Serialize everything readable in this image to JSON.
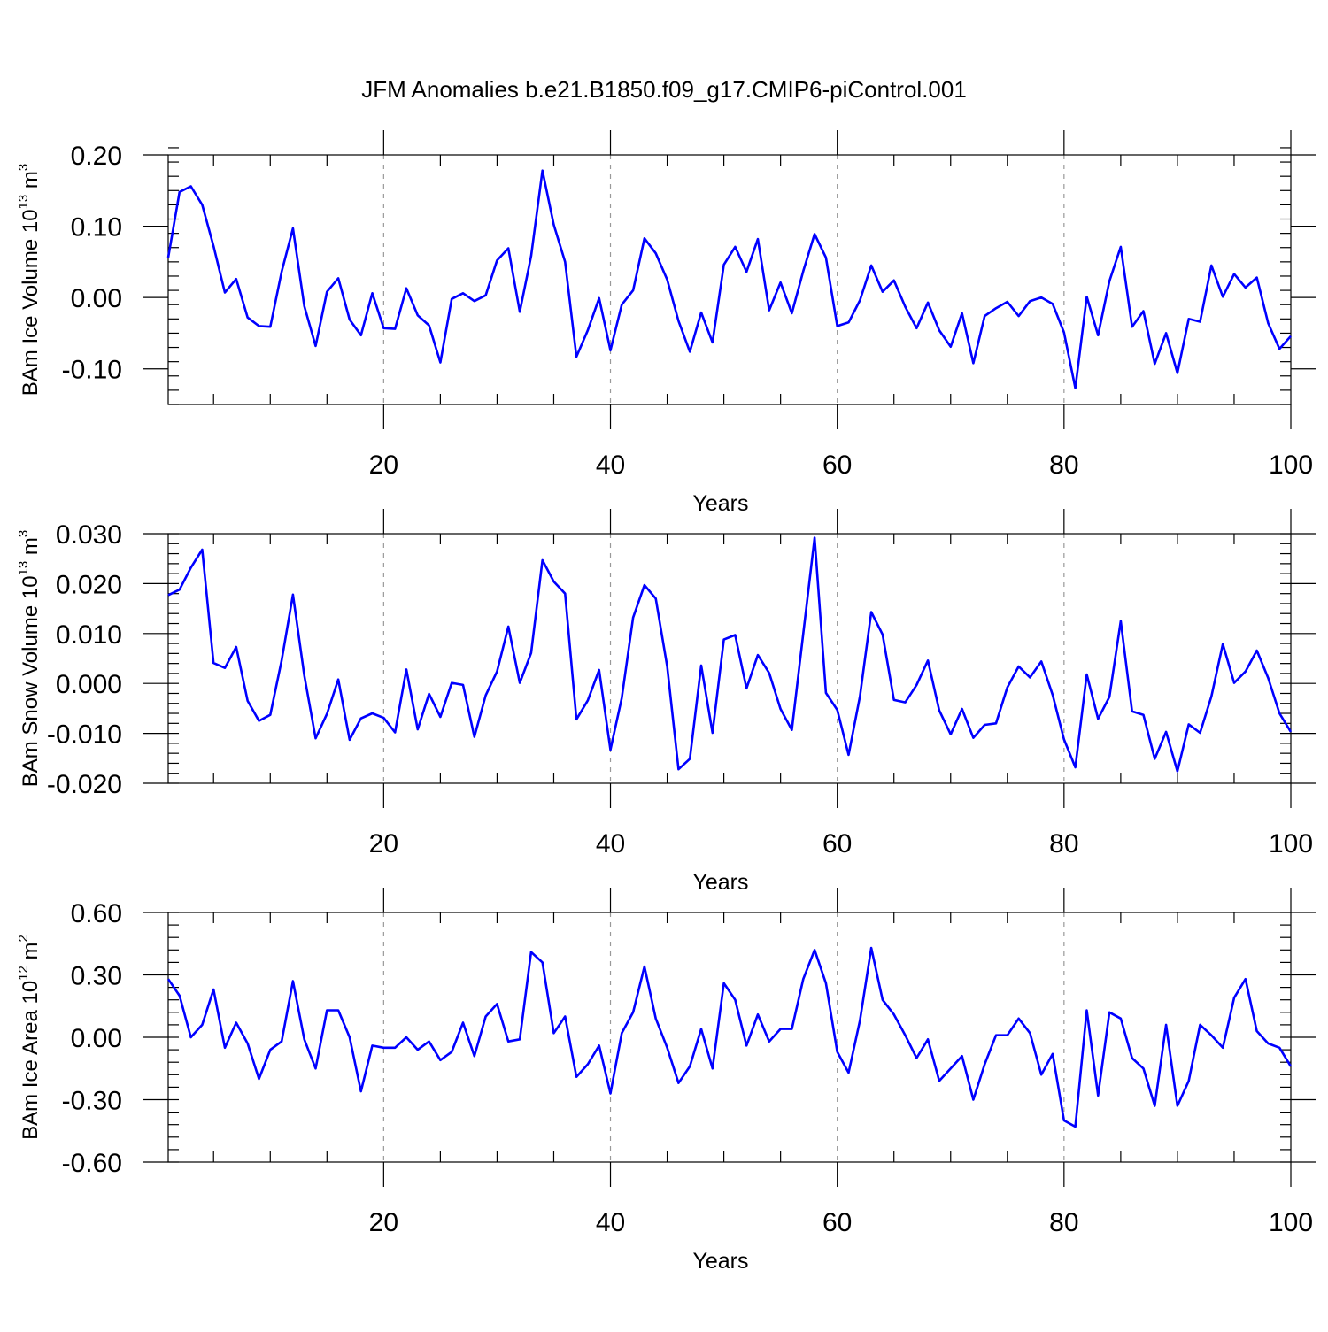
{
  "title": "JFM Anomalies b.e21.B1850.f09_g17.CMIP6-piControl.001",
  "chart_data": [
    {
      "type": "line",
      "ylabel": "BAm Ice Volume 10",
      "ylabel_exp": "13",
      "ylabel_unit": " m",
      "ylabel_unit_exp": "3",
      "xlabel": "Years",
      "xlim": [
        1,
        100
      ],
      "ylim": [
        -0.15,
        0.2
      ],
      "xticks": [
        20,
        40,
        60,
        80,
        100
      ],
      "xtick_labels": [
        "20",
        "40",
        "60",
        "80",
        "100"
      ],
      "yticks": [
        -0.1,
        0.0,
        0.1,
        0.2
      ],
      "ytick_labels": [
        "-0.10",
        "0.00",
        "0.10",
        "0.20"
      ],
      "yminor_step": 0.02,
      "grid_x": [
        20,
        40,
        60,
        80
      ],
      "series": [
        {
          "name": "Ice Volume",
          "color": "#0000ff",
          "x_start": 1,
          "values": [
            0.056,
            0.148,
            0.156,
            0.13,
            0.072,
            0.007,
            0.026,
            -0.028,
            -0.04,
            -0.041,
            0.036,
            0.097,
            -0.012,
            -0.068,
            0.008,
            0.027,
            -0.031,
            -0.053,
            0.006,
            -0.043,
            -0.044,
            0.013,
            -0.025,
            -0.039,
            -0.091,
            -0.002,
            0.006,
            -0.005,
            0.003,
            0.052,
            0.069,
            -0.02,
            0.058,
            0.178,
            0.102,
            0.05,
            -0.083,
            -0.046,
            -0.001,
            -0.074,
            -0.01,
            0.01,
            0.083,
            0.062,
            0.025,
            -0.033,
            -0.076,
            -0.021,
            -0.063,
            0.046,
            0.071,
            0.036,
            0.082,
            -0.018,
            0.021,
            -0.022,
            0.037,
            0.089,
            0.056,
            -0.04,
            -0.035,
            -0.004,
            0.045,
            0.008,
            0.024,
            -0.013,
            -0.043,
            -0.007,
            -0.046,
            -0.069,
            -0.022,
            -0.092,
            -0.026,
            -0.015,
            -0.006,
            -0.026,
            -0.005,
            0.0,
            -0.009,
            -0.049,
            -0.127,
            0.001,
            -0.053,
            0.023,
            0.071,
            -0.041,
            -0.019,
            -0.093,
            -0.05,
            -0.106,
            -0.03,
            -0.034,
            0.045,
            0.001,
            0.033,
            0.014,
            0.028,
            -0.036,
            -0.072,
            -0.054
          ]
        }
      ]
    },
    {
      "type": "line",
      "ylabel": "BAm Snow Volume 10",
      "ylabel_exp": "13",
      "ylabel_unit": " m",
      "ylabel_unit_exp": "3",
      "xlabel": "Years",
      "xlim": [
        1,
        100
      ],
      "ylim": [
        -0.02,
        0.03
      ],
      "xticks": [
        20,
        40,
        60,
        80,
        100
      ],
      "xtick_labels": [
        "20",
        "40",
        "60",
        "80",
        "100"
      ],
      "yticks": [
        -0.02,
        -0.01,
        0.0,
        0.01,
        0.02,
        0.03
      ],
      "ytick_labels": [
        "-0.020",
        "-0.010",
        "0.000",
        "0.010",
        "0.020",
        "0.030"
      ],
      "yminor_step": 0.002,
      "grid_x": [
        20,
        40,
        60,
        80
      ],
      "series": [
        {
          "name": "Snow Volume",
          "color": "#0000ff",
          "x_start": 1,
          "values": [
            0.0177,
            0.0188,
            0.0232,
            0.0268,
            0.0041,
            0.0031,
            0.0073,
            -0.0035,
            -0.0075,
            -0.0063,
            0.0046,
            0.0178,
            0.0016,
            -0.011,
            -0.0061,
            0.0008,
            -0.0113,
            -0.007,
            -0.006,
            -0.0069,
            -0.0098,
            0.0028,
            -0.0092,
            -0.0021,
            -0.0067,
            0.0001,
            -0.0003,
            -0.0107,
            -0.0024,
            0.0024,
            0.0114,
            0.0001,
            0.0061,
            0.0247,
            0.0204,
            0.018,
            -0.0072,
            -0.0034,
            0.0027,
            -0.0133,
            -0.0029,
            0.0132,
            0.0197,
            0.017,
            0.0034,
            -0.0172,
            -0.0151,
            0.0036,
            -0.0099,
            0.0088,
            0.0097,
            -0.001,
            0.0057,
            0.0021,
            -0.0051,
            -0.0093,
            0.01,
            0.0292,
            -0.0019,
            -0.0053,
            -0.0143,
            -0.0026,
            0.0143,
            0.0098,
            -0.0033,
            -0.0038,
            -0.0003,
            0.0046,
            -0.0054,
            -0.0102,
            -0.0051,
            -0.0109,
            -0.0083,
            -0.008,
            -0.0008,
            0.0034,
            0.0012,
            0.0044,
            -0.0023,
            -0.0112,
            -0.0168,
            0.0018,
            -0.0071,
            -0.0027,
            0.0125,
            -0.0056,
            -0.0063,
            -0.0151,
            -0.0097,
            -0.0176,
            -0.0082,
            -0.0099,
            -0.0026,
            0.0079,
            0.0001,
            0.0024,
            0.0066,
            0.0011,
            -0.006,
            -0.0097
          ]
        }
      ]
    },
    {
      "type": "line",
      "ylabel": "BAm Ice Area 10",
      "ylabel_exp": "12",
      "ylabel_unit": " m",
      "ylabel_unit_exp": "2",
      "xlabel": "Years",
      "xlim": [
        1,
        100
      ],
      "ylim": [
        -0.6,
        0.6
      ],
      "xticks": [
        20,
        40,
        60,
        80,
        100
      ],
      "xtick_labels": [
        "20",
        "40",
        "60",
        "80",
        "100"
      ],
      "yticks": [
        -0.6,
        -0.3,
        0.0,
        0.3,
        0.6
      ],
      "ytick_labels": [
        "-0.60",
        "-0.30",
        "0.00",
        "0.30",
        "0.60"
      ],
      "yminor_step": 0.06,
      "grid_x": [
        20,
        40,
        60,
        80
      ],
      "series": [
        {
          "name": "Ice Area",
          "color": "#0000ff",
          "x_start": 1,
          "values": [
            0.28,
            0.2,
            -0.0,
            0.06,
            0.23,
            -0.05,
            0.07,
            -0.03,
            -0.2,
            -0.06,
            -0.02,
            0.27,
            -0.01,
            -0.15,
            0.13,
            0.13,
            0.0,
            -0.26,
            -0.04,
            -0.05,
            -0.05,
            0.0,
            -0.06,
            -0.02,
            -0.11,
            -0.07,
            0.07,
            -0.09,
            0.1,
            0.16,
            -0.02,
            -0.01,
            0.41,
            0.36,
            0.02,
            0.1,
            -0.19,
            -0.13,
            -0.04,
            -0.27,
            0.02,
            0.12,
            0.34,
            0.09,
            -0.05,
            -0.22,
            -0.14,
            0.04,
            -0.15,
            0.26,
            0.18,
            -0.04,
            0.11,
            -0.02,
            0.04,
            0.04,
            0.28,
            0.42,
            0.26,
            -0.07,
            -0.17,
            0.08,
            0.43,
            0.18,
            0.11,
            0.01,
            -0.1,
            -0.01,
            -0.21,
            -0.15,
            -0.09,
            -0.3,
            -0.13,
            0.01,
            0.01,
            0.09,
            0.02,
            -0.18,
            -0.08,
            -0.4,
            -0.43,
            0.13,
            -0.28,
            0.12,
            0.09,
            -0.1,
            -0.15,
            -0.33,
            0.06,
            -0.33,
            -0.21,
            0.06,
            0.01,
            -0.05,
            0.19,
            0.28,
            0.03,
            -0.03,
            -0.05,
            -0.14
          ]
        }
      ]
    }
  ]
}
